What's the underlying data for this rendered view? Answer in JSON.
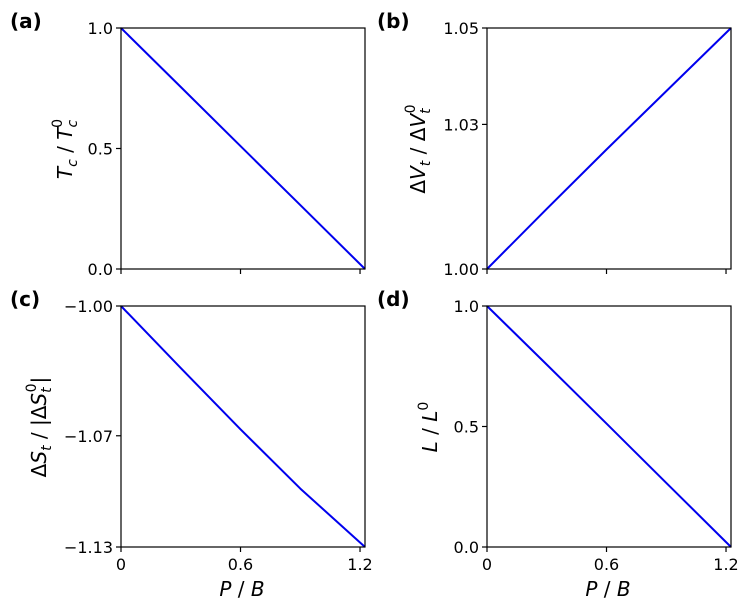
{
  "colors": {
    "line": "#0000ee",
    "axes": "#000000",
    "background": "#ffffff"
  },
  "chart_data": [
    {
      "panel": "(a)",
      "type": "line",
      "xlabel": "",
      "ylabel": "T_c / T_c^0",
      "xlim": [
        0,
        1.225
      ],
      "ylim": [
        0.0,
        1.0
      ],
      "xticks": [
        0,
        0.6,
        1.2
      ],
      "xtick_labels_visible": false,
      "yticks": [
        0.0,
        0.5,
        1.0
      ],
      "ytick_labels": [
        "0.0",
        "0.5",
        "1.0"
      ],
      "series": [
        {
          "x": [
            0,
            0.3,
            0.6,
            0.9,
            1.225
          ],
          "y": [
            1.0,
            0.755,
            0.51,
            0.265,
            0.0
          ]
        }
      ]
    },
    {
      "panel": "(b)",
      "type": "line",
      "xlabel": "",
      "ylabel": "ΔV_t / ΔV_t^0",
      "xlim": [
        0,
        1.225
      ],
      "ylim": [
        1.0,
        1.05
      ],
      "xticks": [
        0,
        0.6,
        1.2
      ],
      "xtick_labels_visible": false,
      "yticks": [
        1.0,
        1.03,
        1.05
      ],
      "ytick_labels": [
        "1.00",
        "1.03",
        "1.05"
      ],
      "series": [
        {
          "x": [
            0,
            0.3,
            0.6,
            0.9,
            1.225
          ],
          "y": [
            1.0,
            1.0125,
            1.0248,
            1.0369,
            1.05
          ]
        }
      ]
    },
    {
      "panel": "(c)",
      "type": "line",
      "xlabel": "P / B",
      "ylabel": "ΔS_t / |ΔS_t^0|",
      "xlim": [
        0,
        1.225
      ],
      "ylim": [
        -1.13,
        -1.0
      ],
      "xticks": [
        0,
        0.6,
        1.2
      ],
      "xtick_labels": [
        "0",
        "0.6",
        "1.2"
      ],
      "yticks": [
        -1.13,
        -1.07,
        -1.0
      ],
      "ytick_labels": [
        "−1.13",
        "−1.07",
        "−1.00"
      ],
      "series": [
        {
          "x": [
            0,
            0.3,
            0.6,
            0.9,
            1.225
          ],
          "y": [
            -1.0,
            -1.0335,
            -1.0665,
            -1.0985,
            -1.13
          ]
        }
      ]
    },
    {
      "panel": "(d)",
      "type": "line",
      "xlabel": "P / B",
      "ylabel": "L / L^0",
      "xlim": [
        0,
        1.225
      ],
      "ylim": [
        0.0,
        1.0
      ],
      "xticks": [
        0,
        0.6,
        1.2
      ],
      "xtick_labels": [
        "0",
        "0.6",
        "1.2"
      ],
      "yticks": [
        0.0,
        0.5,
        1.0
      ],
      "ytick_labels": [
        "0.0",
        "0.5",
        "1.0"
      ],
      "series": [
        {
          "x": [
            0,
            0.3,
            0.6,
            0.9,
            1.225
          ],
          "y": [
            1.0,
            0.757,
            0.512,
            0.266,
            0.0
          ]
        }
      ]
    }
  ]
}
